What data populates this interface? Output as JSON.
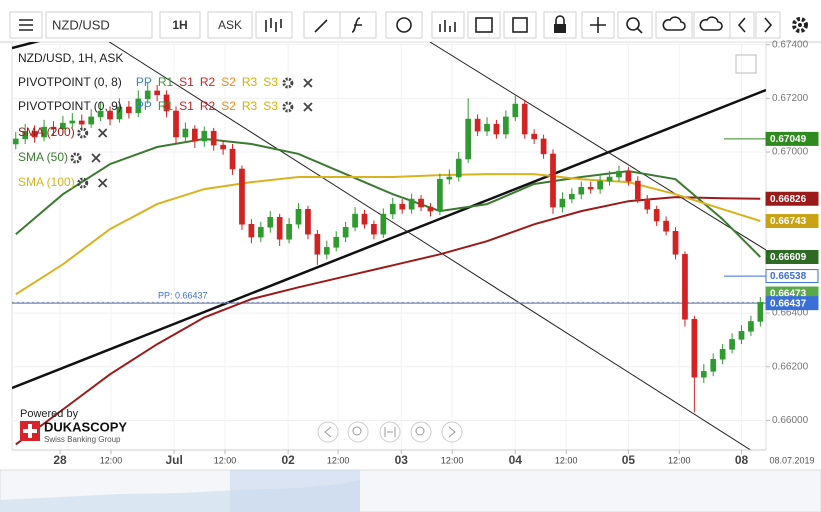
{
  "toolbar": {
    "symbol": "NZD/USD",
    "timeframe": "1H",
    "side": "ASK"
  },
  "branding": {
    "powered": "Powered by",
    "name": "DUKASCOPY",
    "tagline": "Swiss Banking Group"
  },
  "chart_data": {
    "type": "candlestick",
    "title": "NZD/USD, 1H, ASK",
    "up_color": "#2f9a2f",
    "down_color": "#d32222",
    "grid": true,
    "open": [
      0.6703,
      0.67049,
      0.67078,
      0.67056,
      0.67093,
      0.67086,
      0.67108,
      0.67116,
      0.67104,
      0.67131,
      0.67153,
      0.67123,
      0.67168,
      0.67146,
      0.67198,
      0.67228,
      0.67213,
      0.67153,
      0.67056,
      0.67086,
      0.67041,
      0.67078,
      0.67026,
      0.67011,
      0.66937,
      0.66731,
      0.66683,
      0.6672,
      0.66757,
      0.66675,
      0.66731,
      0.66787,
      0.66694,
      0.66619,
      0.66645,
      0.66683,
      0.6672,
      0.66769,
      0.66731,
      0.66694,
      0.66769,
      0.66806,
      0.66787,
      0.66825,
      0.66795,
      0.6678,
      0.66899,
      0.66907,
      0.66974,
      0.67123,
      0.67078,
      0.67104,
      0.67067,
      0.67131,
      0.67179,
      0.67067,
      0.67049,
      0.66993,
      0.66795,
      0.66825,
      0.66843,
      0.66869,
      0.66862,
      0.66892,
      0.66907,
      0.66929,
      0.66892,
      0.66825,
      0.66787,
      0.66743,
      0.66705,
      0.66619,
      0.66377,
      0.66161,
      0.66183,
      0.66228,
      0.66265,
      0.66302,
      0.66332,
      0.66369
    ],
    "high": [
      0.67075,
      0.67105,
      0.671,
      0.6712,
      0.67115,
      0.67135,
      0.67145,
      0.6714,
      0.6716,
      0.67185,
      0.6717,
      0.672,
      0.6719,
      0.6723,
      0.6726,
      0.6725,
      0.6723,
      0.6717,
      0.6711,
      0.671,
      0.67095,
      0.6709,
      0.67045,
      0.6703,
      0.6695,
      0.6675,
      0.6674,
      0.6678,
      0.6677,
      0.66755,
      0.6681,
      0.668,
      0.6671,
      0.6667,
      0.66705,
      0.6674,
      0.66795,
      0.66785,
      0.66745,
      0.6679,
      0.6683,
      0.66825,
      0.66845,
      0.6684,
      0.6681,
      0.6692,
      0.66935,
      0.67,
      0.672,
      0.6714,
      0.6713,
      0.6712,
      0.67155,
      0.6721,
      0.67195,
      0.67085,
      0.67065,
      0.6701,
      0.6685,
      0.66865,
      0.6689,
      0.6689,
      0.66915,
      0.6693,
      0.6695,
      0.66945,
      0.6691,
      0.6684,
      0.668,
      0.6676,
      0.6672,
      0.6663,
      0.6639,
      0.6621,
      0.6625,
      0.66285,
      0.66325,
      0.66355,
      0.6639,
      0.6646
    ],
    "low": [
      0.6701,
      0.6703,
      0.67035,
      0.6704,
      0.6706,
      0.6707,
      0.6709,
      0.6708,
      0.6709,
      0.67115,
      0.671,
      0.6711,
      0.67125,
      0.6713,
      0.6718,
      0.6719,
      0.6713,
      0.6703,
      0.6704,
      0.67015,
      0.6702,
      0.67005,
      0.6699,
      0.66915,
      0.6671,
      0.6666,
      0.66665,
      0.667,
      0.6665,
      0.6666,
      0.66715,
      0.66675,
      0.6658,
      0.666,
      0.6663,
      0.66665,
      0.66705,
      0.66715,
      0.66675,
      0.6668,
      0.6675,
      0.6677,
      0.6677,
      0.6678,
      0.6676,
      0.66765,
      0.6688,
      0.6689,
      0.6696,
      0.6706,
      0.6706,
      0.6705,
      0.6705,
      0.67115,
      0.6705,
      0.6703,
      0.66975,
      0.6677,
      0.66775,
      0.6681,
      0.66825,
      0.66845,
      0.66845,
      0.66875,
      0.6689,
      0.66875,
      0.6681,
      0.6677,
      0.66725,
      0.6669,
      0.666,
      0.6635,
      0.6603,
      0.6614,
      0.66165,
      0.6621,
      0.6625,
      0.66285,
      0.66315,
      0.6635
    ],
    "close": [
      0.67049,
      0.67078,
      0.67056,
      0.67093,
      0.67086,
      0.67108,
      0.67116,
      0.67104,
      0.67131,
      0.67153,
      0.67123,
      0.67168,
      0.67146,
      0.67198,
      0.67228,
      0.67213,
      0.67153,
      0.67056,
      0.67086,
      0.67041,
      0.67078,
      0.67026,
      0.67011,
      0.66937,
      0.66731,
      0.66683,
      0.6672,
      0.66757,
      0.66675,
      0.66731,
      0.66787,
      0.66694,
      0.66619,
      0.66645,
      0.66683,
      0.6672,
      0.66769,
      0.66731,
      0.66694,
      0.66769,
      0.66806,
      0.66787,
      0.66825,
      0.66795,
      0.6678,
      0.66899,
      0.66907,
      0.66974,
      0.67123,
      0.67078,
      0.67104,
      0.67067,
      0.67131,
      0.67179,
      0.67067,
      0.67049,
      0.66993,
      0.66795,
      0.66825,
      0.66843,
      0.66869,
      0.66862,
      0.66892,
      0.66907,
      0.66929,
      0.66892,
      0.66825,
      0.66787,
      0.66743,
      0.66705,
      0.66619,
      0.66377,
      0.66161,
      0.66183,
      0.66228,
      0.66265,
      0.66302,
      0.66332,
      0.66369,
      0.6644
    ],
    "xlim": [
      -0.4,
      79.6
    ],
    "xticks": [
      {
        "value": 4.7,
        "label": "28"
      },
      {
        "value": 10.1,
        "label": "12:00"
      },
      {
        "value": 16.8,
        "label": "Jul"
      },
      {
        "value": 22.2,
        "label": "12:00"
      },
      {
        "value": 28.9,
        "label": "02"
      },
      {
        "value": 34.2,
        "label": "12:00"
      },
      {
        "value": 40.9,
        "label": "03"
      },
      {
        "value": 46.3,
        "label": "12:00"
      },
      {
        "value": 53.0,
        "label": "04"
      },
      {
        "value": 58.4,
        "label": "12:00"
      },
      {
        "value": 65.0,
        "label": "05"
      },
      {
        "value": 70.4,
        "label": "12:00"
      },
      {
        "value": 77.0,
        "label": "08"
      }
    ],
    "date_label": "08.07.2019",
    "ylim": [
      0.6589,
      0.6741
    ],
    "yticks": [
      {
        "value": 0.674,
        "label": "0.67400"
      },
      {
        "value": 0.672,
        "label": "0.67200"
      },
      {
        "value": 0.67,
        "label": "0.67000"
      },
      {
        "value": 0.664,
        "label": "0.66400"
      },
      {
        "value": 0.662,
        "label": "0.66200"
      },
      {
        "value": 0.66,
        "label": "0.66000"
      }
    ],
    "indicator_x": [
      0,
      5,
      10,
      15,
      20,
      25,
      30,
      35,
      40,
      45,
      50,
      55,
      60,
      65,
      70,
      75,
      79
    ],
    "series": [
      {
        "name": "SMA (200)",
        "color": "#9b1b1b",
        "values": [
          0.65911,
          0.66041,
          0.66172,
          0.66284,
          0.66384,
          0.66452,
          0.66496,
          0.66537,
          0.66578,
          0.66619,
          0.66668,
          0.66731,
          0.6678,
          0.66817,
          0.66832,
          0.66828,
          0.66826
        ]
      },
      {
        "name": "SMA (50)",
        "color": "#3c7a32",
        "values": [
          0.66694,
          0.66843,
          0.66955,
          0.67019,
          0.67049,
          0.6703,
          0.66993,
          0.66918,
          0.66843,
          0.6678,
          0.66806,
          0.66881,
          0.66907,
          0.66929,
          0.66899,
          0.6675,
          0.66609
        ]
      },
      {
        "name": "SMA (100)",
        "color": "#d9b21f",
        "values": [
          0.6647,
          0.66582,
          0.66713,
          0.66806,
          0.66862,
          0.66888,
          0.66907,
          0.66907,
          0.66907,
          0.66914,
          0.66918,
          0.66918,
          0.66899,
          0.66888,
          0.66843,
          0.66787,
          0.66743
        ]
      }
    ],
    "pivots": [
      {
        "name": "PIVOTPOINT (0, 8)"
      },
      {
        "name": "PIVOTPOINT (0, 9)"
      }
    ],
    "pivot_levels": [
      "PP",
      "R1",
      "S1",
      "R2",
      "S2",
      "R3",
      "S3"
    ],
    "pivot_level_colors": [
      "#3a86d6",
      "#3c9a32",
      "#d32222",
      "#d32222",
      "#ef8a16",
      "#e2a800",
      "#d8b400"
    ],
    "pivot_line": {
      "label": "PP: 0.66437",
      "value": 0.66437,
      "color": "#3a6fd8"
    },
    "price_labels": [
      {
        "value": 0.67049,
        "color": "#2f8a1f",
        "line": "short",
        "style": "filled"
      },
      {
        "value": 0.66826,
        "color": "#9b1b1b",
        "line": "none",
        "style": "filled"
      },
      {
        "value": 0.66743,
        "color": "#c9a216",
        "line": "none",
        "style": "filled"
      },
      {
        "value": 0.66609,
        "color": "#2f6a24",
        "line": "none",
        "style": "filled"
      },
      {
        "value": 0.66538,
        "color": "#3a6fd8",
        "line": "short",
        "style": "outline"
      },
      {
        "value": 0.66473,
        "color": "#59a84a",
        "line": "none",
        "style": "filled"
      },
      {
        "value": 0.66437,
        "color": "#3a6fd8",
        "line": "none",
        "style": "filled"
      }
    ]
  }
}
